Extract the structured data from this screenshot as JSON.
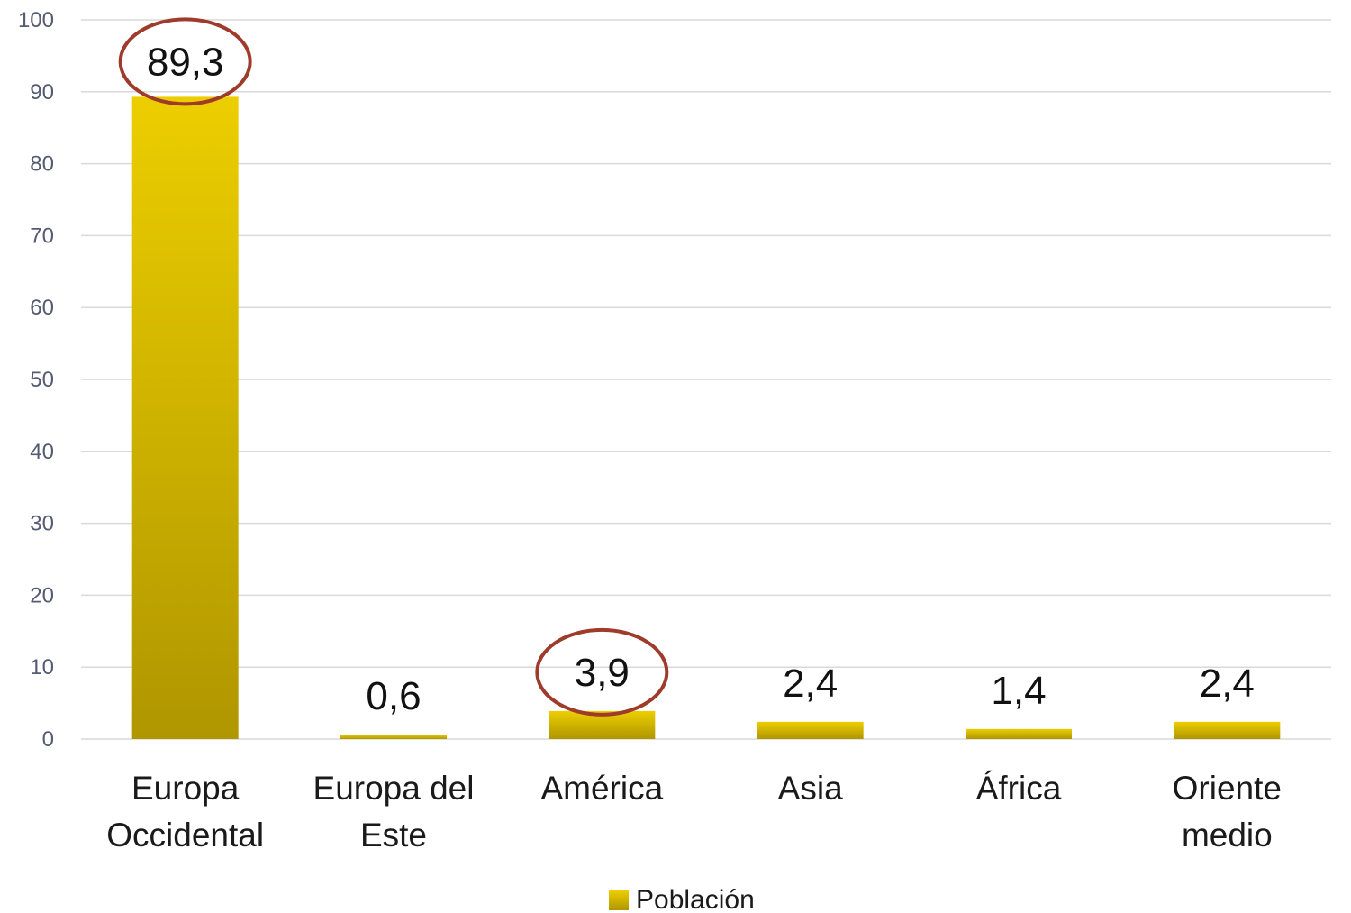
{
  "chart_data": {
    "type": "bar",
    "categories": [
      [
        "Europa",
        "Occidental"
      ],
      [
        "Europa del",
        "Este"
      ],
      [
        "América"
      ],
      [
        "Asia"
      ],
      [
        "África"
      ],
      [
        "Oriente",
        "medio"
      ]
    ],
    "series": [
      {
        "name": "Población",
        "values": [
          89.3,
          0.6,
          3.9,
          2.4,
          1.4,
          2.4
        ],
        "value_labels": [
          "89,3",
          "0,6",
          "3,9",
          "2,4",
          "1,4",
          "2,4"
        ]
      }
    ],
    "highlighted_categories": [
      0,
      2
    ],
    "yticks": [
      0,
      10,
      20,
      30,
      40,
      50,
      60,
      70,
      80,
      90,
      100
    ],
    "ylim": [
      0,
      100
    ],
    "grid": true,
    "legend": "bottom-center",
    "colors": {
      "bar_top": "#ecce00",
      "bar_bottom": "#b09600",
      "highlight_ring": "#9e3b2b",
      "grid": "#d9d9d9"
    }
  }
}
